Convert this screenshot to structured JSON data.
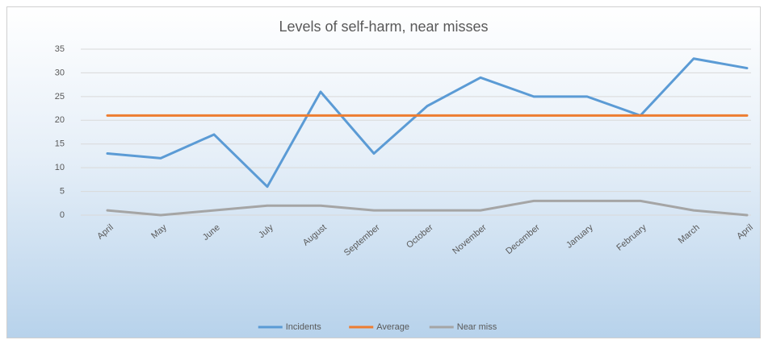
{
  "chart_data": {
    "type": "line",
    "title": "Levels of self-harm, near misses",
    "categories": [
      "April",
      "May",
      "June",
      "July",
      "August",
      "September",
      "October",
      "November",
      "December",
      "January",
      "February",
      "March",
      "April"
    ],
    "series": [
      {
        "name": "Incidents",
        "color": "#5b9bd5",
        "values": [
          13,
          12,
          17,
          6,
          26,
          13,
          23,
          29,
          25,
          25,
          21,
          33,
          31
        ]
      },
      {
        "name": "Average",
        "color": "#ed7d31",
        "values": [
          21,
          21,
          21,
          21,
          21,
          21,
          21,
          21,
          21,
          21,
          21,
          21,
          21
        ]
      },
      {
        "name": "Near miss",
        "color": "#a5a5a5",
        "values": [
          1,
          0,
          1,
          2,
          2,
          1,
          1,
          1,
          3,
          3,
          3,
          1,
          0
        ]
      }
    ],
    "ylim": [
      0,
      35
    ],
    "yticks": [
      0,
      5,
      10,
      15,
      20,
      25,
      30,
      35
    ],
    "grid": true,
    "legend": "bottom"
  }
}
